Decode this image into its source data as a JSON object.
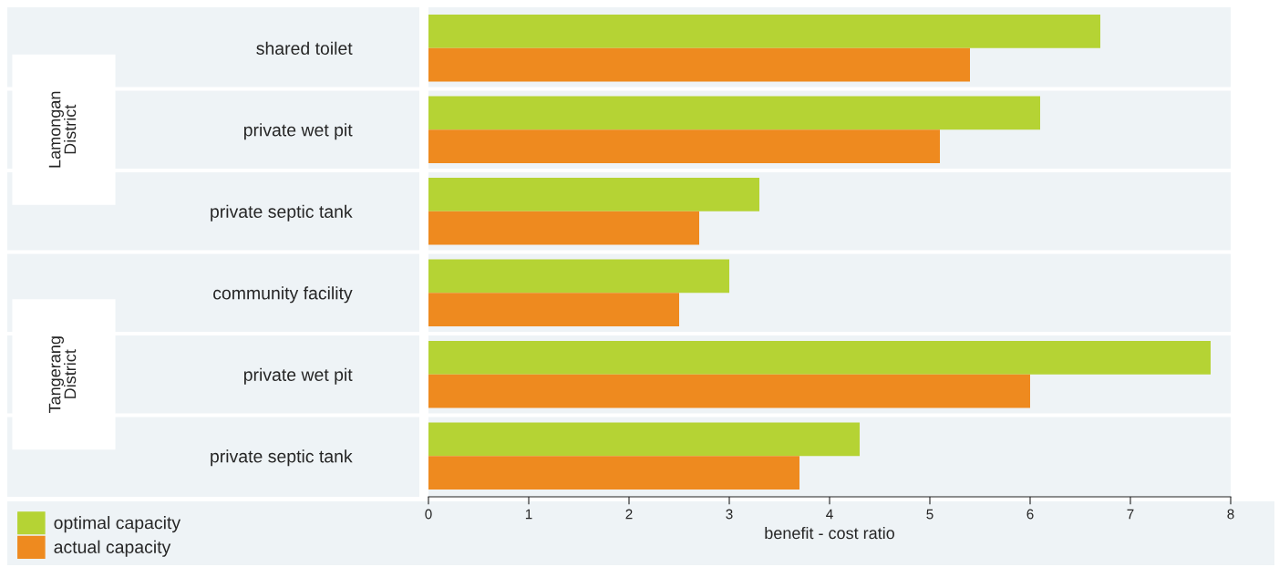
{
  "chart_data": {
    "type": "bar",
    "orientation": "horizontal",
    "xlabel": "benefit - cost ratio",
    "categories": [
      "shared toilet",
      "private wet pit",
      "private septic tank",
      "community facility",
      "private wet pit",
      "private septic tank"
    ],
    "series": [
      {
        "name": "optimal capacity",
        "color": "#b5d334",
        "values": [
          6.7,
          6.1,
          3.3,
          3.0,
          7.8,
          4.3
        ]
      },
      {
        "name": "actual capacity",
        "color": "#ee8a1f",
        "values": [
          5.4,
          5.1,
          2.7,
          2.5,
          6.0,
          3.7
        ]
      }
    ],
    "xlim": [
      0,
      8
    ],
    "xticks": [
      0,
      1,
      2,
      3,
      4,
      5,
      6,
      7,
      8
    ],
    "annotations": [
      "Lamongan\nDistrict",
      "Tangerang\nDistrict"
    ],
    "grid": false,
    "legend": "bottom left"
  }
}
